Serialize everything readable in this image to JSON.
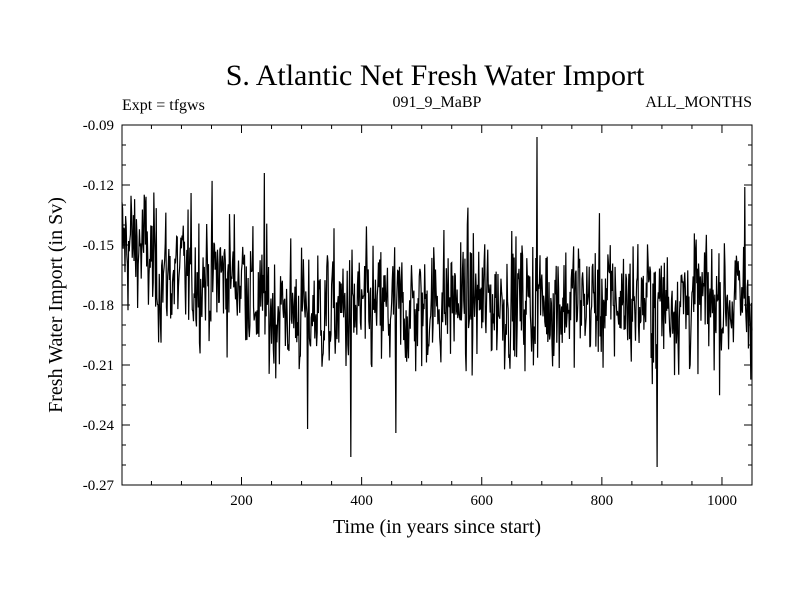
{
  "chart_data": {
    "type": "line",
    "title": "S. Atlantic Net Fresh Water Import",
    "subtitle_left": "Expt = tfgws",
    "subtitle_center": "091_9_MaBP",
    "subtitle_right": "ALL_MONTHS",
    "xlabel": "Time (in years since start)",
    "ylabel": "Fresh Water Import (in Sv)",
    "xlim": [
      1,
      1050
    ],
    "ylim": [
      -0.27,
      -0.09
    ],
    "xticks": [
      200,
      400,
      600,
      800,
      1000
    ],
    "xtick_labels": [
      "200",
      "400",
      "600",
      "800",
      "1000"
    ],
    "yticks": [
      -0.09,
      -0.12,
      -0.15,
      -0.18,
      -0.21,
      -0.24,
      -0.27
    ],
    "ytick_labels": [
      "-0.09",
      "-0.12",
      "-0.15",
      "-0.18",
      "-0.21",
      "-0.24",
      "-0.27"
    ],
    "grid": false,
    "series": [
      {
        "name": "net fresh water import",
        "color": "#000000",
        "summary": {
          "n_points": 1050,
          "segment_means": [
            {
              "x_range": [
                1,
                60
              ],
              "mean": -0.15
            },
            {
              "x_range": [
                60,
                230
              ],
              "mean": -0.165
            },
            {
              "x_range": [
                230,
                520
              ],
              "mean": -0.183
            },
            {
              "x_range": [
                520,
                1050
              ],
              "mean": -0.178
            }
          ],
          "noise_std": 0.016
        },
        "extremes": [
          {
            "x": 692,
            "y": -0.096
          },
          {
            "x": 238,
            "y": -0.114
          },
          {
            "x": 1038,
            "y": -0.121
          },
          {
            "x": 382,
            "y": -0.256
          },
          {
            "x": 892,
            "y": -0.261
          },
          {
            "x": 457,
            "y": -0.244
          },
          {
            "x": 310,
            "y": -0.242
          }
        ]
      }
    ]
  }
}
